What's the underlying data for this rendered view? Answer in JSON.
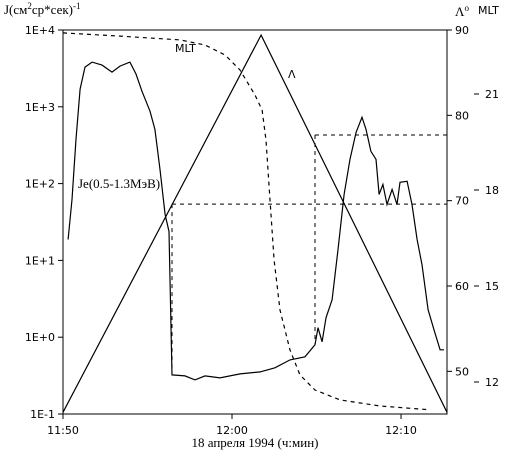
{
  "chart_data": {
    "type": "line",
    "y_label_parts": [
      "J(см",
      "2",
      "ср*сек)",
      "-1"
    ],
    "y2_label": "Λ",
    "y2_label_sup": "o",
    "y3_label": "MLT",
    "x_label": "18 апреля 1994 (ч:мин)",
    "xlim": [
      710,
      732.72
    ],
    "xticks": [
      {
        "value": 710,
        "label": "11:50"
      },
      {
        "value": 720,
        "label": "12:00"
      },
      {
        "value": 730,
        "label": "12:10"
      }
    ],
    "ylim": [
      0.1,
      10000
    ],
    "log_y": true,
    "yticks": [
      {
        "value": 0.1,
        "label": "1E-1"
      },
      {
        "value": 1,
        "label": "1E+0"
      },
      {
        "value": 10,
        "label": "1E+1"
      },
      {
        "value": 100,
        "label": "1E+2"
      },
      {
        "value": 1000,
        "label": "1E+3"
      },
      {
        "value": 10000,
        "label": "1E+4"
      }
    ],
    "y2lim": [
      45,
      90
    ],
    "y2ticks": [
      50,
      60,
      70,
      80,
      90
    ],
    "y3lim": [
      11,
      23
    ],
    "y3ticks": [
      12,
      15,
      18,
      21
    ],
    "series": [
      {
        "name": "Je(0.5-1.3MэВ)",
        "axis": "y",
        "color": "#000000",
        "style": "solid",
        "x": [
          710.3,
          710.53,
          710.77,
          711.01,
          711.3,
          711.72,
          712.31,
          712.9,
          713.37,
          713.96,
          714.32,
          714.67,
          715.15,
          715.44,
          715.74,
          716.04,
          716.27,
          716.45,
          717.22,
          717.81,
          718.4,
          719.29,
          720.47,
          721.66,
          722.54,
          723.43,
          724.32,
          724.91,
          725.09,
          725.33,
          725.56,
          725.92,
          726.27,
          726.63,
          726.98,
          727.34,
          727.69,
          727.93,
          728.22,
          728.52,
          728.7,
          728.93,
          729.17,
          729.47,
          729.76,
          729.94,
          730.36,
          730.65,
          730.95,
          731.24,
          731.6,
          731.95,
          732.31,
          732.54
        ],
        "values": [
          18.7,
          62,
          378,
          1700,
          3290,
          3820,
          3490,
          2830,
          3390,
          3820,
          2670,
          1600,
          877,
          510,
          153,
          39.6,
          23.8,
          0.323,
          0.313,
          0.278,
          0.313,
          0.295,
          0.333,
          0.353,
          0.399,
          0.507,
          0.555,
          0.796,
          1.33,
          0.871,
          1.79,
          3.08,
          13.8,
          72.3,
          207,
          466,
          731,
          510,
          263,
          207,
          72.3,
          97.7,
          53.5,
          84,
          53.5,
          104,
          107,
          53.5,
          18.7,
          8.8,
          2.28,
          1.25,
          0.685,
          0.685
        ]
      },
      {
        "name": "Λ",
        "axis": "y2",
        "color": "#000000",
        "style": "solid",
        "x": [
          710,
          721.72,
          732.72
        ],
        "values": [
          45.2,
          89.4,
          45.2
        ]
      },
      {
        "name": "MLT",
        "axis": "y3",
        "color": "#000000",
        "style": "dashed",
        "x": [
          710,
          713.37,
          716.92,
          718.4,
          719.59,
          720.47,
          721.36,
          721.78,
          722.01,
          722.25,
          722.49,
          722.84,
          723.43,
          724.02,
          724.91,
          726.39,
          728.76,
          731.72
        ],
        "values": [
          22.91,
          22.81,
          22.69,
          22.53,
          22.22,
          21.75,
          20.97,
          20.5,
          19.56,
          17.69,
          15.81,
          14.25,
          13.0,
          12.22,
          11.75,
          11.44,
          11.25,
          11.13
        ]
      }
    ],
    "markers": [
      {
        "x": 716.45,
        "lambda": 69.6
      },
      {
        "x": 724.91,
        "lambda": 77.7
      }
    ]
  }
}
